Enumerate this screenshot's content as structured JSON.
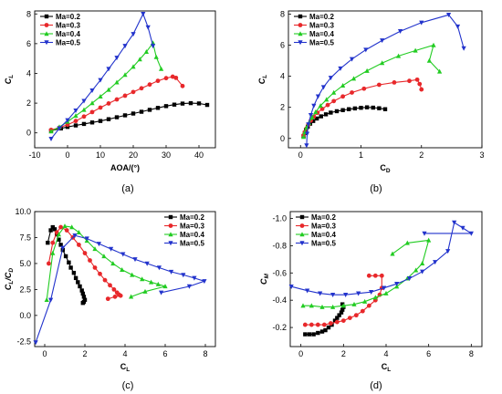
{
  "figure": {
    "panels": [
      {
        "id": "a",
        "caption": "(a)"
      },
      {
        "id": "b",
        "caption": "(b)"
      },
      {
        "id": "c",
        "caption": "(c)"
      },
      {
        "id": "d",
        "caption": "(d)"
      }
    ]
  },
  "chart_data": [
    {
      "id": "a",
      "type": "line",
      "xlabel": "AOA/(°)",
      "ylabel": "C_L",
      "xlim": [
        -10,
        45
      ],
      "ylim": [
        -1,
        8.2
      ],
      "xticks": [
        -10,
        0,
        10,
        20,
        30,
        40
      ],
      "yticks": [
        0,
        2,
        4,
        6,
        8
      ],
      "legend_position": "top-left",
      "series": [
        {
          "name": "Ma=0.2",
          "color": "#000000",
          "marker": "square",
          "x": [
            -5,
            -2,
            0,
            2.5,
            5,
            7.5,
            10,
            12.5,
            15,
            17.5,
            20,
            22.5,
            25,
            27.5,
            30,
            32.5,
            35,
            37.5,
            40,
            42.5
          ],
          "y": [
            0.15,
            0.3,
            0.4,
            0.5,
            0.6,
            0.7,
            0.8,
            0.92,
            1.05,
            1.18,
            1.3,
            1.42,
            1.55,
            1.68,
            1.8,
            1.9,
            1.97,
            2.0,
            1.98,
            1.88
          ]
        },
        {
          "name": "Ma=0.3",
          "color": "#e8282b",
          "marker": "circle",
          "x": [
            -5,
            -2.5,
            0,
            2.5,
            5,
            7.5,
            10,
            12.5,
            15,
            17.5,
            20,
            22.5,
            25,
            27.5,
            30,
            32,
            33,
            35
          ],
          "y": [
            0.2,
            0.35,
            0.55,
            0.8,
            1.1,
            1.4,
            1.7,
            1.98,
            2.25,
            2.5,
            2.75,
            3.0,
            3.25,
            3.5,
            3.68,
            3.78,
            3.7,
            3.15
          ]
        },
        {
          "name": "Ma=0.4",
          "color": "#22cc22",
          "marker": "triangle-up",
          "x": [
            -5,
            -2.5,
            0,
            2.5,
            5,
            7.5,
            10,
            12.5,
            15,
            17.5,
            20,
            22,
            24,
            26,
            27,
            28.5
          ],
          "y": [
            0.1,
            0.4,
            0.75,
            1.15,
            1.55,
            2.0,
            2.45,
            2.9,
            3.4,
            3.9,
            4.45,
            4.95,
            5.45,
            6.05,
            5.1,
            4.3
          ]
        },
        {
          "name": "Ma=0.5",
          "color": "#2233cc",
          "marker": "triangle-down",
          "x": [
            -5,
            -2.5,
            0,
            2.5,
            5,
            7.5,
            10,
            12.5,
            15,
            17.5,
            20,
            23,
            24.5,
            26
          ],
          "y": [
            -0.4,
            0.3,
            0.85,
            1.5,
            2.15,
            2.85,
            3.55,
            4.3,
            5.05,
            5.85,
            6.65,
            8.0,
            7.1,
            5.85
          ]
        }
      ]
    },
    {
      "id": "b",
      "type": "line",
      "xlabel": "C_D",
      "ylabel": "C_L",
      "xlim": [
        -0.2,
        3
      ],
      "ylim": [
        -0.6,
        8.2
      ],
      "xticks": [
        0,
        1,
        2,
        3
      ],
      "yticks": [
        0,
        2,
        4,
        6,
        8
      ],
      "legend_position": "top-left",
      "series": [
        {
          "name": "Ma=0.2",
          "color": "#000000",
          "marker": "square",
          "x": [
            0.05,
            0.07,
            0.09,
            0.12,
            0.16,
            0.21,
            0.27,
            0.34,
            0.42,
            0.5,
            0.6,
            0.7,
            0.8,
            0.9,
            1.0,
            1.1,
            1.2,
            1.3,
            1.4
          ],
          "y": [
            0.15,
            0.35,
            0.55,
            0.75,
            0.95,
            1.12,
            1.28,
            1.42,
            1.55,
            1.66,
            1.75,
            1.82,
            1.88,
            1.93,
            1.97,
            2.0,
            1.98,
            1.94,
            1.88
          ]
        },
        {
          "name": "Ma=0.3",
          "color": "#e8282b",
          "marker": "circle",
          "x": [
            0.05,
            0.07,
            0.1,
            0.13,
            0.17,
            0.22,
            0.28,
            0.36,
            0.45,
            0.55,
            0.7,
            0.85,
            1.05,
            1.3,
            1.55,
            1.8,
            1.93,
            1.97,
            2.0
          ],
          "y": [
            0.2,
            0.4,
            0.65,
            0.9,
            1.15,
            1.4,
            1.65,
            1.9,
            2.15,
            2.4,
            2.7,
            2.95,
            3.2,
            3.45,
            3.6,
            3.7,
            3.78,
            3.5,
            3.15
          ]
        },
        {
          "name": "Ma=0.4",
          "color": "#22cc22",
          "marker": "triangle-up",
          "x": [
            0.05,
            0.07,
            0.1,
            0.14,
            0.19,
            0.25,
            0.33,
            0.43,
            0.55,
            0.7,
            0.88,
            1.1,
            1.35,
            1.62,
            1.9,
            2.2,
            2.13,
            2.3
          ],
          "y": [
            0.1,
            0.4,
            0.7,
            1.0,
            1.35,
            1.7,
            2.1,
            2.5,
            2.95,
            3.4,
            3.85,
            4.35,
            4.85,
            5.3,
            5.65,
            6.0,
            5.0,
            4.3
          ]
        },
        {
          "name": "Ma=0.5",
          "color": "#2233cc",
          "marker": "triangle-down",
          "x": [
            0.1,
            0.11,
            0.13,
            0.17,
            0.22,
            0.29,
            0.38,
            0.5,
            0.66,
            0.85,
            1.08,
            1.35,
            1.65,
            2.0,
            2.45,
            2.6,
            2.7
          ],
          "y": [
            -0.45,
            0.3,
            0.9,
            1.5,
            2.1,
            2.7,
            3.3,
            3.9,
            4.5,
            5.1,
            5.7,
            6.3,
            6.9,
            7.45,
            7.95,
            7.2,
            5.8
          ]
        }
      ]
    },
    {
      "id": "c",
      "type": "line",
      "xlabel": "C_L",
      "ylabel": "C_L/C_D",
      "xlim": [
        -0.5,
        8.5
      ],
      "ylim": [
        -3,
        10
      ],
      "xticks": [
        0,
        2,
        4,
        6,
        8
      ],
      "yticks": [
        -2.5,
        0.0,
        2.5,
        5.0,
        7.5,
        10.0
      ],
      "ytick_labels": [
        "-2.5",
        "0.0",
        "2.5",
        "5.0",
        "7.5",
        "10.0"
      ],
      "legend_position": "top-right",
      "series": [
        {
          "name": "Ma=0.2",
          "color": "#000000",
          "marker": "square",
          "x": [
            0.15,
            0.3,
            0.4,
            0.5,
            0.6,
            0.7,
            0.8,
            0.9,
            1.05,
            1.2,
            1.3,
            1.45,
            1.55,
            1.65,
            1.75,
            1.85,
            1.9,
            1.95,
            2.0,
            1.95,
            1.9
          ],
          "y": [
            7.0,
            8.2,
            8.5,
            8.3,
            7.8,
            7.3,
            6.8,
            6.3,
            5.7,
            5.1,
            4.6,
            4.1,
            3.6,
            3.2,
            2.8,
            2.4,
            2.1,
            1.8,
            1.5,
            1.3,
            1.2
          ]
        },
        {
          "name": "Ma=0.3",
          "color": "#e8282b",
          "marker": "circle",
          "x": [
            0.2,
            0.4,
            0.6,
            0.8,
            1.1,
            1.4,
            1.7,
            2.0,
            2.25,
            2.5,
            2.75,
            3.0,
            3.25,
            3.45,
            3.6,
            3.7,
            3.78,
            3.5,
            3.15
          ],
          "y": [
            5.0,
            7.0,
            8.0,
            8.5,
            8.2,
            7.5,
            6.8,
            6.0,
            5.3,
            4.6,
            4.0,
            3.4,
            2.9,
            2.5,
            2.2,
            2.0,
            1.9,
            1.8,
            1.6
          ]
        },
        {
          "name": "Ma=0.4",
          "color": "#22cc22",
          "marker": "triangle-up",
          "x": [
            0.1,
            0.4,
            0.7,
            1.0,
            1.35,
            1.7,
            2.1,
            2.5,
            2.95,
            3.4,
            3.85,
            4.35,
            4.85,
            5.3,
            5.65,
            6.0,
            5.0,
            4.3
          ],
          "y": [
            1.5,
            6.0,
            7.8,
            8.6,
            8.5,
            8.0,
            7.2,
            6.4,
            5.7,
            5.0,
            4.4,
            3.9,
            3.5,
            3.2,
            3.0,
            2.8,
            2.3,
            1.8
          ]
        },
        {
          "name": "Ma=0.5",
          "color": "#2233cc",
          "marker": "triangle-down",
          "x": [
            -0.45,
            0.3,
            0.9,
            1.5,
            2.1,
            2.7,
            3.3,
            3.9,
            4.5,
            5.1,
            5.7,
            6.3,
            6.9,
            7.45,
            7.95,
            7.2,
            5.8
          ],
          "y": [
            -2.6,
            1.5,
            6.5,
            7.7,
            7.4,
            6.9,
            6.4,
            5.9,
            5.4,
            5.0,
            4.6,
            4.2,
            3.9,
            3.6,
            3.3,
            2.8,
            2.2
          ]
        }
      ]
    },
    {
      "id": "d",
      "type": "line",
      "xlabel": "C_L",
      "ylabel": "C_M",
      "xlim": [
        -0.5,
        8.5
      ],
      "ylim": [
        -0.06,
        -1.05
      ],
      "xticks": [
        0,
        2,
        4,
        6,
        8
      ],
      "yticks": [
        -0.2,
        -0.4,
        -0.6,
        -0.8,
        -1.0
      ],
      "ytick_labels": [
        "-0.2",
        "-0.4",
        "-0.6",
        "-0.8",
        "-1.0"
      ],
      "legend_position": "top-left",
      "series": [
        {
          "name": "Ma=0.2",
          "color": "#000000",
          "marker": "square",
          "x": [
            0.2,
            0.4,
            0.6,
            0.8,
            1.0,
            1.15,
            1.3,
            1.45,
            1.6,
            1.7,
            1.8,
            1.9,
            1.95,
            2.0,
            1.95
          ],
          "y": [
            -0.15,
            -0.15,
            -0.15,
            -0.16,
            -0.17,
            -0.18,
            -0.2,
            -0.22,
            -0.25,
            -0.27,
            -0.29,
            -0.31,
            -0.33,
            -0.35,
            -0.37
          ]
        },
        {
          "name": "Ma=0.3",
          "color": "#e8282b",
          "marker": "circle",
          "x": [
            0.2,
            0.5,
            0.8,
            1.1,
            1.4,
            1.7,
            2.0,
            2.3,
            2.6,
            2.9,
            3.2,
            3.5,
            3.7,
            3.8,
            3.8,
            3.5,
            3.2
          ],
          "y": [
            -0.22,
            -0.22,
            -0.22,
            -0.22,
            -0.23,
            -0.24,
            -0.25,
            -0.27,
            -0.29,
            -0.32,
            -0.36,
            -0.4,
            -0.44,
            -0.49,
            -0.58,
            -0.58,
            -0.58
          ]
        },
        {
          "name": "Ma=0.4",
          "color": "#22cc22",
          "marker": "triangle-up",
          "x": [
            0.1,
            0.5,
            1.0,
            1.5,
            2.0,
            2.5,
            3.0,
            3.5,
            4.0,
            4.5,
            5.0,
            5.4,
            5.7,
            6.0,
            5.0,
            4.3
          ],
          "y": [
            -0.36,
            -0.36,
            -0.35,
            -0.35,
            -0.36,
            -0.37,
            -0.39,
            -0.42,
            -0.45,
            -0.5,
            -0.56,
            -0.62,
            -0.67,
            -0.84,
            -0.82,
            -0.74
          ]
        },
        {
          "name": "Ma=0.5",
          "color": "#2233cc",
          "marker": "triangle-down",
          "x": [
            -0.45,
            0.3,
            0.9,
            1.5,
            2.1,
            2.7,
            3.3,
            3.9,
            4.5,
            5.1,
            5.7,
            6.3,
            6.9,
            7.2,
            7.6,
            8.0,
            5.8
          ],
          "y": [
            -0.5,
            -0.47,
            -0.45,
            -0.44,
            -0.44,
            -0.45,
            -0.46,
            -0.49,
            -0.52,
            -0.56,
            -0.61,
            -0.68,
            -0.76,
            -0.97,
            -0.93,
            -0.89,
            -0.89
          ]
        }
      ]
    }
  ]
}
